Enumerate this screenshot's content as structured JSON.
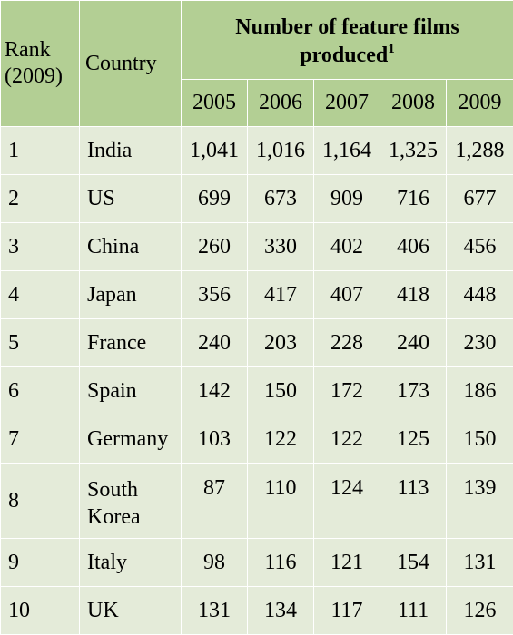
{
  "table": {
    "rank_header": [
      "Rank",
      "(2009)"
    ],
    "country_header": "Country",
    "group_title_line1": "Number of feature films",
    "group_title_line2": "produced",
    "footnote_marker": "1",
    "years": [
      "2005",
      "2006",
      "2007",
      "2008",
      "2009"
    ],
    "rows": [
      {
        "rank": "1",
        "country": "India",
        "values": [
          "1,041",
          "1,016",
          "1,164",
          "1,325",
          "1,288"
        ]
      },
      {
        "rank": "2",
        "country": "US",
        "values": [
          "699",
          "673",
          "909",
          "716",
          "677"
        ]
      },
      {
        "rank": "3",
        "country": "China",
        "values": [
          "260",
          "330",
          "402",
          "406",
          "456"
        ]
      },
      {
        "rank": "4",
        "country": "Japan",
        "values": [
          "356",
          "417",
          "407",
          "418",
          "448"
        ]
      },
      {
        "rank": "5",
        "country": "France",
        "values": [
          "240",
          "203",
          "228",
          "240",
          "230"
        ]
      },
      {
        "rank": "6",
        "country": "Spain",
        "values": [
          "142",
          "150",
          "172",
          "173",
          "186"
        ]
      },
      {
        "rank": "7",
        "country": "Germany",
        "values": [
          "103",
          "122",
          "122",
          "125",
          "150"
        ]
      },
      {
        "rank": "8",
        "country_lines": [
          "South",
          "Korea"
        ],
        "values": [
          "87",
          "110",
          "124",
          "113",
          "139"
        ]
      },
      {
        "rank": "9",
        "country": "Italy",
        "values": [
          "98",
          "116",
          "121",
          "154",
          "131"
        ]
      },
      {
        "rank": "10",
        "country": "UK",
        "values": [
          "131",
          "134",
          "117",
          "111",
          "126"
        ]
      }
    ]
  },
  "colors": {
    "header_background": "#b3cf94",
    "body_background": "#e4ebd9",
    "grid_lines": "#ffffff",
    "text": "#000000"
  }
}
